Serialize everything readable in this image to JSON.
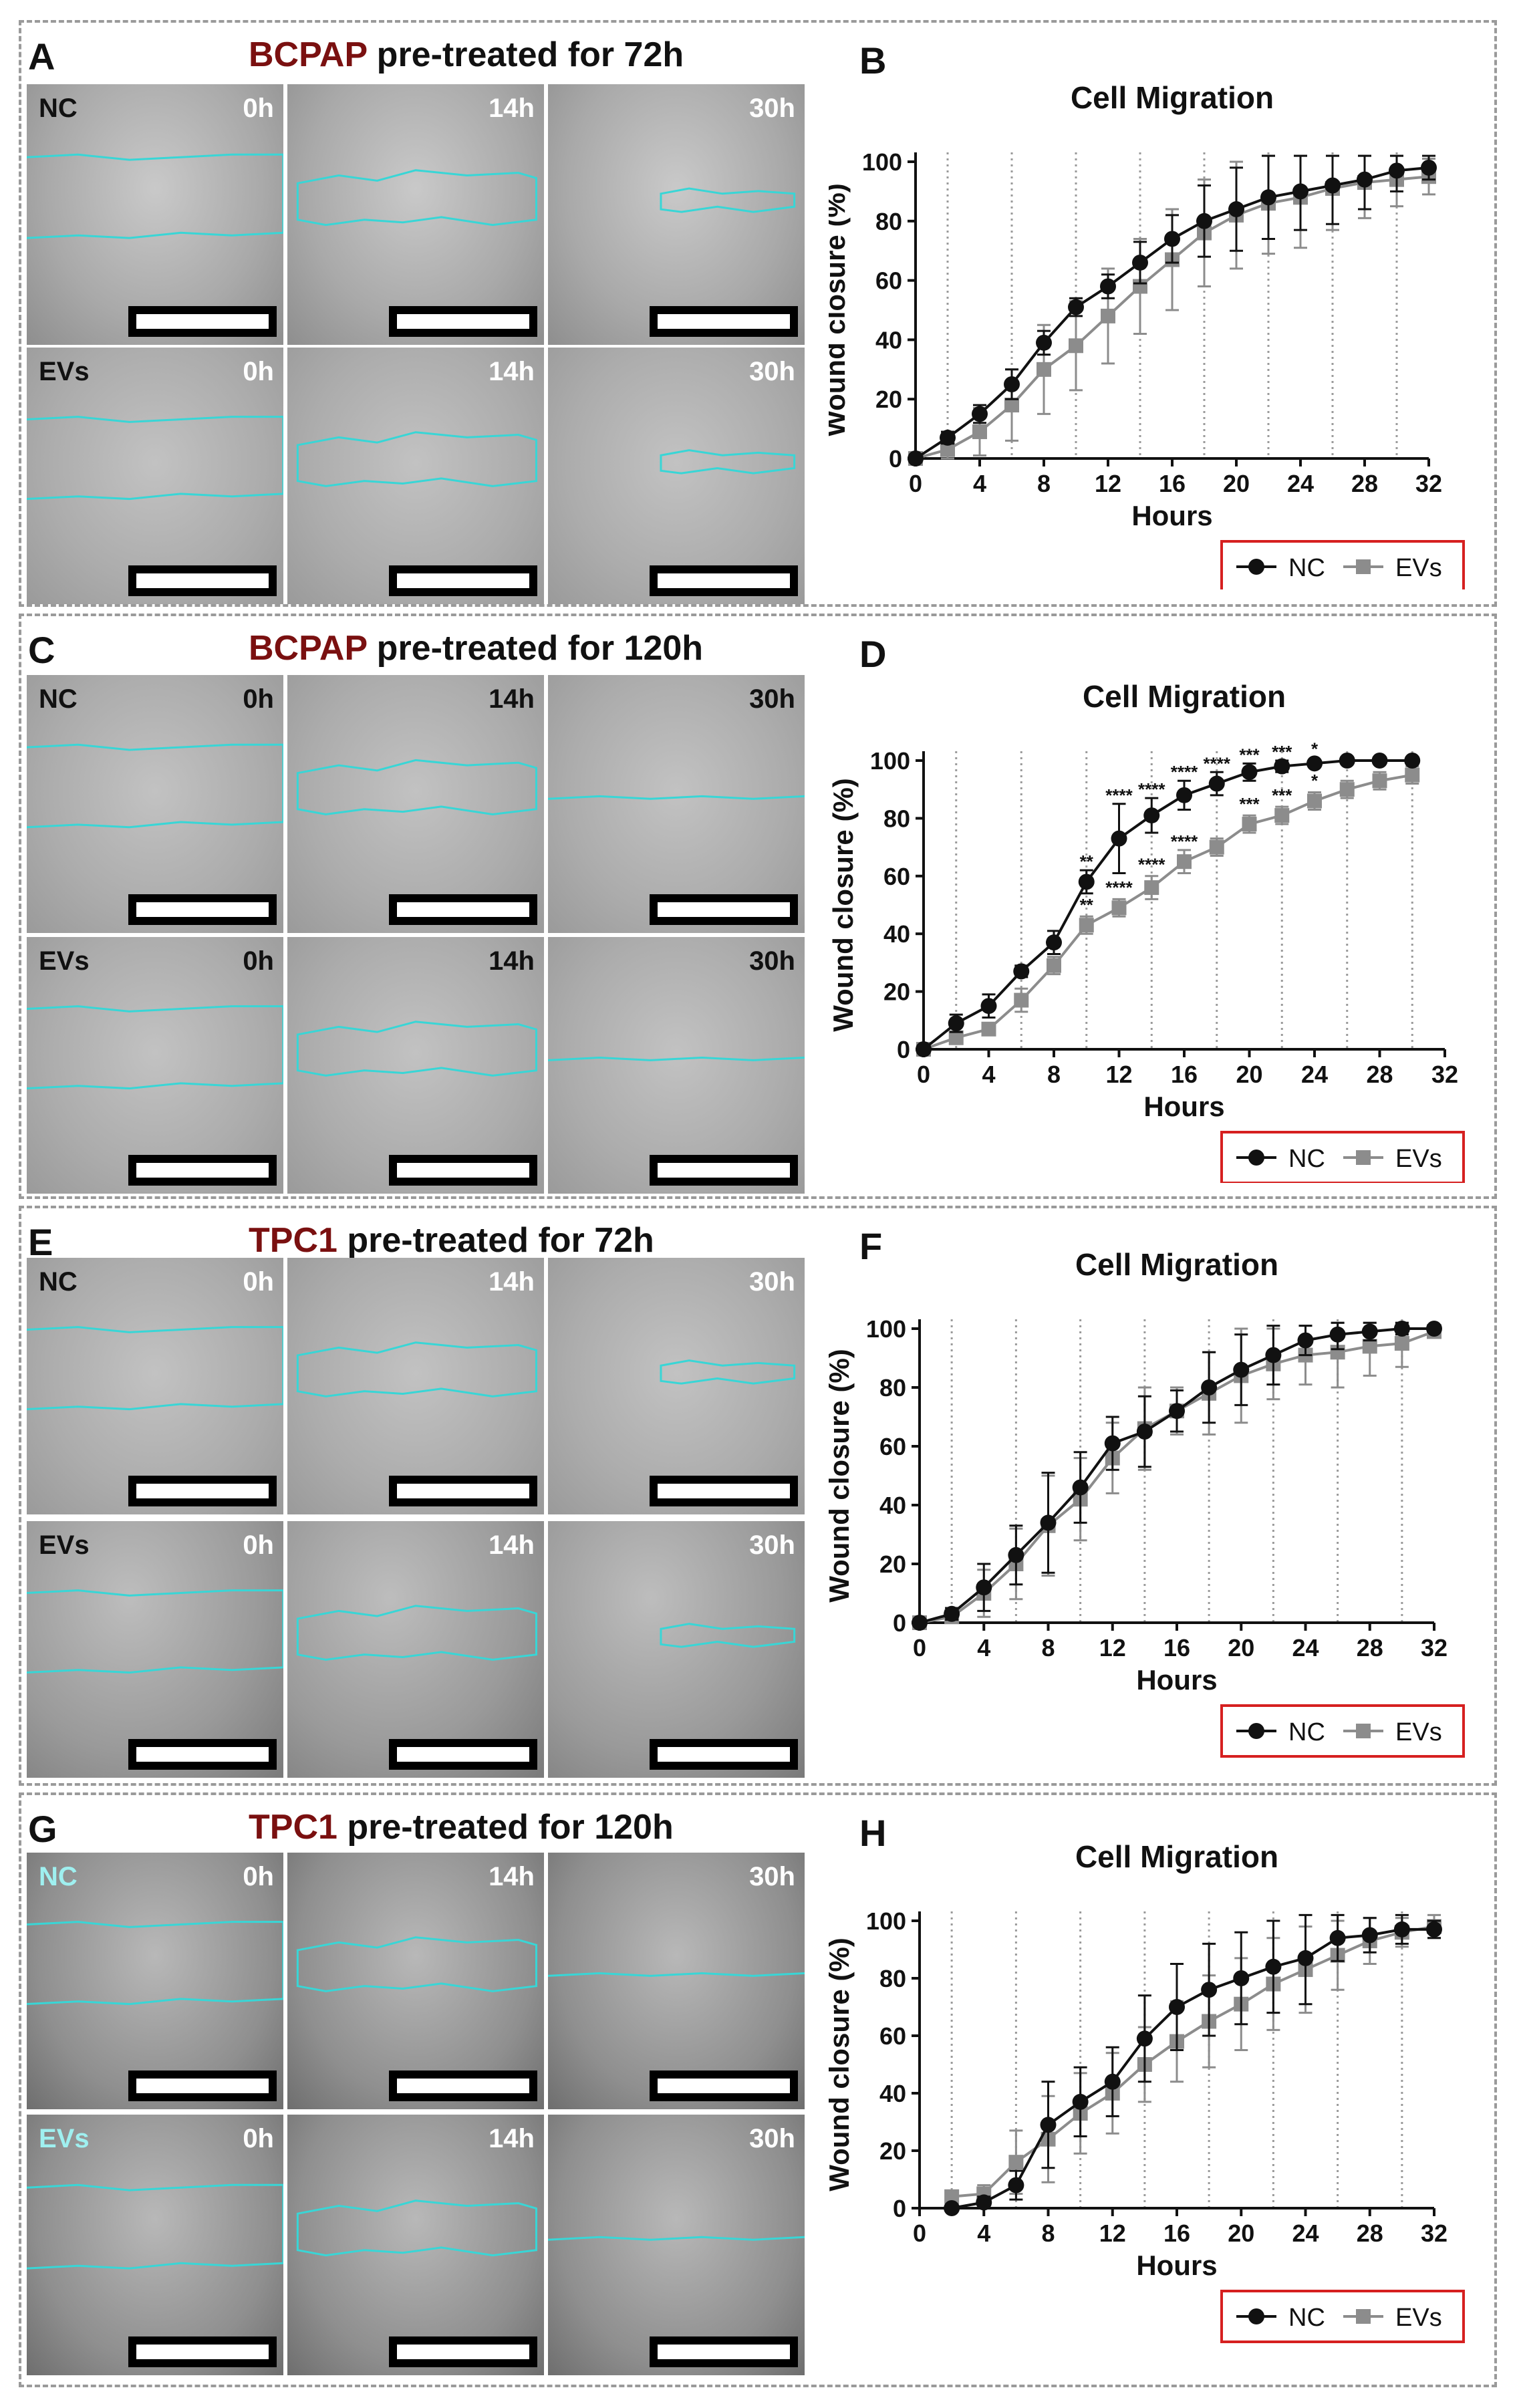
{
  "figure": {
    "blocks": [
      {
        "micro_letter": "A",
        "chart_letter": "B",
        "title_cell": "BCPAP",
        "title_rest": "pre-treated for 72h",
        "rows": [
          {
            "condition": "NC",
            "times": [
              "0h",
              "14h",
              "30h"
            ]
          },
          {
            "condition": "EVs",
            "times": [
              "0h",
              "14h",
              "30h"
            ]
          }
        ]
      },
      {
        "micro_letter": "C",
        "chart_letter": "D",
        "title_cell": "BCPAP",
        "title_rest": "pre-treated for 120h",
        "rows": [
          {
            "condition": "NC",
            "times": [
              "0h",
              "14h",
              "30h"
            ]
          },
          {
            "condition": "EVs",
            "times": [
              "0h",
              "14h",
              "30h"
            ]
          }
        ]
      },
      {
        "micro_letter": "E",
        "chart_letter": "F",
        "title_cell": "TPC1",
        "title_rest": "pre-treated for 72h",
        "rows": [
          {
            "condition": "NC",
            "times": [
              "0h",
              "14h",
              "30h"
            ]
          },
          {
            "condition": "EVs",
            "times": [
              "0h",
              "14h",
              "30h"
            ]
          }
        ]
      },
      {
        "micro_letter": "G",
        "chart_letter": "H",
        "title_cell": "TPC1",
        "title_rest": "pre-treated for 120h",
        "rows": [
          {
            "condition": "NC",
            "times": [
              "0h",
              "14h",
              "30h"
            ]
          },
          {
            "condition": "EVs",
            "times": [
              "0h",
              "14h",
              "30h"
            ]
          }
        ]
      }
    ],
    "colors": {
      "title_cell": "#7a1010",
      "nc": "#111111",
      "evs": "#8c8c8c",
      "outline": "#38d6d6",
      "legend_border": "#d62020"
    }
  },
  "chart_data": [
    {
      "type": "line",
      "title": "Cell Migration",
      "xlabel": "Hours",
      "ylabel": "Wound closure (%)",
      "xlim": [
        0,
        32
      ],
      "ylim": [
        0,
        100
      ],
      "xticks": [
        0,
        4,
        8,
        12,
        16,
        20,
        24,
        28,
        32
      ],
      "yticks": [
        0,
        20,
        40,
        60,
        80,
        100
      ],
      "vlines": [
        2,
        6,
        10,
        14,
        18,
        22,
        26,
        30
      ],
      "legend": [
        "NC",
        "EVs"
      ],
      "series": [
        {
          "name": "NC",
          "x": [
            0,
            2,
            4,
            6,
            8,
            10,
            12,
            14,
            16,
            18,
            20,
            22,
            24,
            26,
            28,
            30,
            32
          ],
          "values": [
            0,
            7,
            15,
            25,
            39,
            51,
            58,
            66,
            74,
            80,
            84,
            88,
            90,
            92,
            94,
            97,
            98
          ],
          "err": [
            0,
            2,
            3,
            5,
            4,
            3,
            4,
            7,
            8,
            12,
            14,
            14,
            13,
            13,
            10,
            7,
            4
          ]
        },
        {
          "name": "EVs",
          "x": [
            0,
            2,
            4,
            6,
            8,
            10,
            12,
            14,
            16,
            18,
            20,
            22,
            24,
            26,
            28,
            30,
            32
          ],
          "values": [
            0,
            3,
            9,
            18,
            30,
            38,
            48,
            58,
            67,
            76,
            82,
            86,
            88,
            91,
            93,
            94,
            95
          ],
          "err": [
            0,
            3,
            8,
            12,
            15,
            15,
            16,
            16,
            17,
            18,
            18,
            17,
            17,
            14,
            12,
            9,
            6
          ]
        }
      ],
      "annotations": []
    },
    {
      "type": "line",
      "title": "Cell Migration",
      "xlabel": "Hours",
      "ylabel": "Wound closure (%)",
      "xlim": [
        0,
        32
      ],
      "ylim": [
        0,
        100
      ],
      "xticks": [
        0,
        4,
        8,
        12,
        16,
        20,
        24,
        28,
        32
      ],
      "yticks": [
        0,
        20,
        40,
        60,
        80,
        100
      ],
      "vlines": [
        2,
        6,
        10,
        14,
        18,
        22,
        26,
        30
      ],
      "legend": [
        "NC",
        "EVs"
      ],
      "series": [
        {
          "name": "NC",
          "x": [
            0,
            2,
            4,
            6,
            8,
            10,
            12,
            14,
            16,
            18,
            20,
            22,
            24,
            26,
            28,
            30
          ],
          "values": [
            0,
            9,
            15,
            27,
            37,
            58,
            73,
            81,
            88,
            92,
            96,
            98,
            99,
            100,
            100,
            100
          ],
          "err": [
            0,
            3,
            4,
            2,
            4,
            4,
            12,
            6,
            5,
            4,
            3,
            2,
            1,
            1,
            1,
            1
          ]
        },
        {
          "name": "EVs",
          "x": [
            0,
            2,
            4,
            6,
            8,
            10,
            12,
            14,
            16,
            18,
            20,
            22,
            24,
            26,
            28,
            30
          ],
          "values": [
            0,
            4,
            7,
            17,
            29,
            43,
            49,
            56,
            65,
            70,
            78,
            81,
            86,
            90,
            93,
            95
          ],
          "err": [
            0,
            2,
            2,
            4,
            3,
            3,
            3,
            4,
            4,
            3,
            3,
            3,
            3,
            3,
            3,
            3
          ]
        }
      ],
      "annotations": [
        {
          "x": 10,
          "y": 62,
          "text": "**"
        },
        {
          "x": 12,
          "y": 85,
          "text": "****"
        },
        {
          "x": 14,
          "y": 87,
          "text": "****"
        },
        {
          "x": 16,
          "y": 93,
          "text": "****"
        },
        {
          "x": 18,
          "y": 96,
          "text": "****"
        },
        {
          "x": 20,
          "y": 99,
          "text": "***"
        },
        {
          "x": 22,
          "y": 100,
          "text": "***"
        },
        {
          "x": 24,
          "y": 101,
          "text": "*"
        },
        {
          "x": 10,
          "y": 47,
          "text": "**"
        },
        {
          "x": 12,
          "y": 53,
          "text": "****"
        },
        {
          "x": 14,
          "y": 61,
          "text": "****"
        },
        {
          "x": 16,
          "y": 69,
          "text": "****"
        },
        {
          "x": 20,
          "y": 82,
          "text": "***"
        },
        {
          "x": 22,
          "y": 85,
          "text": "***"
        },
        {
          "x": 24,
          "y": 90,
          "text": "*"
        }
      ]
    },
    {
      "type": "line",
      "title": "Cell Migration",
      "xlabel": "Hours",
      "ylabel": "Wound closure (%)",
      "xlim": [
        0,
        32
      ],
      "ylim": [
        0,
        100
      ],
      "xticks": [
        0,
        4,
        8,
        12,
        16,
        20,
        24,
        28,
        32
      ],
      "yticks": [
        0,
        20,
        40,
        60,
        80,
        100
      ],
      "vlines": [
        2,
        6,
        10,
        14,
        18,
        22,
        26,
        30
      ],
      "legend": [
        "NC",
        "EVs"
      ],
      "series": [
        {
          "name": "NC",
          "x": [
            0,
            2,
            4,
            6,
            8,
            10,
            12,
            14,
            16,
            18,
            20,
            22,
            24,
            26,
            28,
            30,
            32
          ],
          "values": [
            0,
            3,
            12,
            23,
            34,
            46,
            61,
            65,
            72,
            80,
            86,
            91,
            96,
            98,
            99,
            100,
            100
          ],
          "err": [
            0,
            2,
            8,
            10,
            17,
            12,
            9,
            12,
            7,
            12,
            12,
            10,
            5,
            5,
            3,
            2,
            1
          ]
        },
        {
          "name": "EVs",
          "x": [
            0,
            2,
            4,
            6,
            8,
            10,
            12,
            14,
            16,
            18,
            20,
            22,
            24,
            26,
            28,
            30,
            32
          ],
          "values": [
            0,
            2,
            10,
            20,
            33,
            42,
            56,
            66,
            72,
            78,
            84,
            88,
            91,
            92,
            94,
            95,
            99
          ],
          "err": [
            0,
            3,
            8,
            12,
            17,
            14,
            12,
            14,
            8,
            14,
            16,
            12,
            10,
            12,
            10,
            8,
            2
          ]
        }
      ],
      "annotations": []
    },
    {
      "type": "line",
      "title": "Cell Migration",
      "xlabel": "Hours",
      "ylabel": "Wound closure (%)",
      "xlim": [
        0,
        32
      ],
      "ylim": [
        0,
        100
      ],
      "xticks": [
        0,
        4,
        8,
        12,
        16,
        20,
        24,
        28,
        32
      ],
      "yticks": [
        0,
        20,
        40,
        60,
        80,
        100
      ],
      "vlines": [
        2,
        6,
        10,
        14,
        18,
        22,
        26,
        30
      ],
      "legend": [
        "NC",
        "EVs"
      ],
      "series": [
        {
          "name": "NC",
          "x": [
            2,
            4,
            6,
            8,
            10,
            12,
            14,
            16,
            18,
            20,
            22,
            24,
            26,
            28,
            30,
            32
          ],
          "values": [
            0,
            2,
            8,
            29,
            37,
            44,
            59,
            70,
            76,
            80,
            84,
            87,
            94,
            95,
            97,
            97
          ],
          "err": [
            1,
            2,
            5,
            15,
            12,
            12,
            15,
            15,
            16,
            16,
            16,
            16,
            8,
            6,
            5,
            3
          ]
        },
        {
          "name": "EVs",
          "x": [
            2,
            4,
            6,
            8,
            10,
            12,
            14,
            16,
            18,
            20,
            22,
            24,
            26,
            28,
            30,
            32
          ],
          "values": [
            4,
            5,
            16,
            24,
            33,
            40,
            50,
            58,
            65,
            71,
            78,
            83,
            88,
            93,
            96,
            98
          ],
          "err": [
            2,
            3,
            11,
            15,
            14,
            14,
            13,
            14,
            16,
            16,
            16,
            15,
            12,
            8,
            5,
            4
          ]
        }
      ],
      "annotations": []
    }
  ]
}
